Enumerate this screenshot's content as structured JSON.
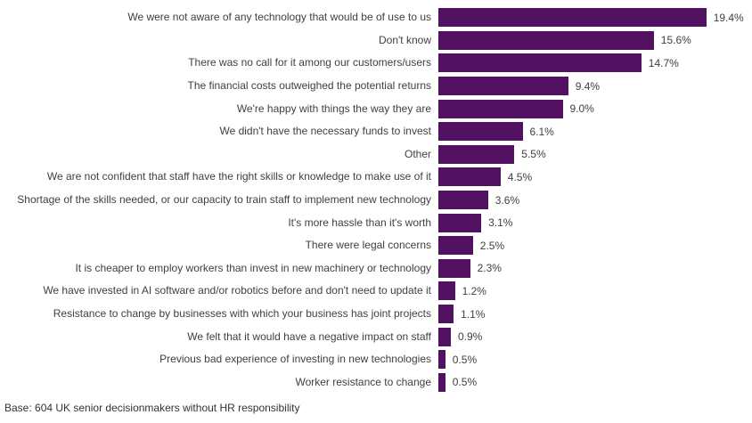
{
  "chart_data": {
    "type": "bar",
    "orientation": "horizontal",
    "title": "",
    "xlabel": "",
    "ylabel": "",
    "xlim": [
      0,
      21
    ],
    "grid": false,
    "legend": false,
    "bar_color": "#511060",
    "categories": [
      "We were not aware of any technology that would be of use to us",
      "Don't know",
      "There was no call for it among our customers/users",
      "The financial costs outweighed the potential returns",
      "We're happy with things the way they are",
      "We didn't have the necessary funds to invest",
      "Other",
      "We are not confident that staff have the right skills or knowledge to make use of it",
      "Shortage of the skills needed, or our capacity to train staff to implement new technology",
      "It's more hassle than it's worth",
      "There were legal concerns",
      "It is cheaper to employ workers than invest in new machinery or technology",
      "We have invested in AI software and/or robotics before and don't need to update it",
      "Resistance to change by businesses with which your business has joint projects",
      "We felt that it would have a negative impact on staff",
      "Previous bad experience of investing in new technologies",
      "Worker resistance to change"
    ],
    "values": [
      19.4,
      15.6,
      14.7,
      9.4,
      9.0,
      6.1,
      5.5,
      4.5,
      3.6,
      3.1,
      2.5,
      2.3,
      1.2,
      1.1,
      0.9,
      0.5,
      0.5
    ],
    "value_labels": [
      "19.4%",
      "15.6%",
      "14.7%",
      "9.4%",
      "9.0%",
      "6.1%",
      "5.5%",
      "4.5%",
      "3.6%",
      "3.1%",
      "2.5%",
      "2.3%",
      "1.2%",
      "1.1%",
      "0.9%",
      "0.5%",
      "0.5%"
    ]
  },
  "footer": {
    "base_note": "Base: 604 UK senior decisionmakers without HR responsibility"
  }
}
